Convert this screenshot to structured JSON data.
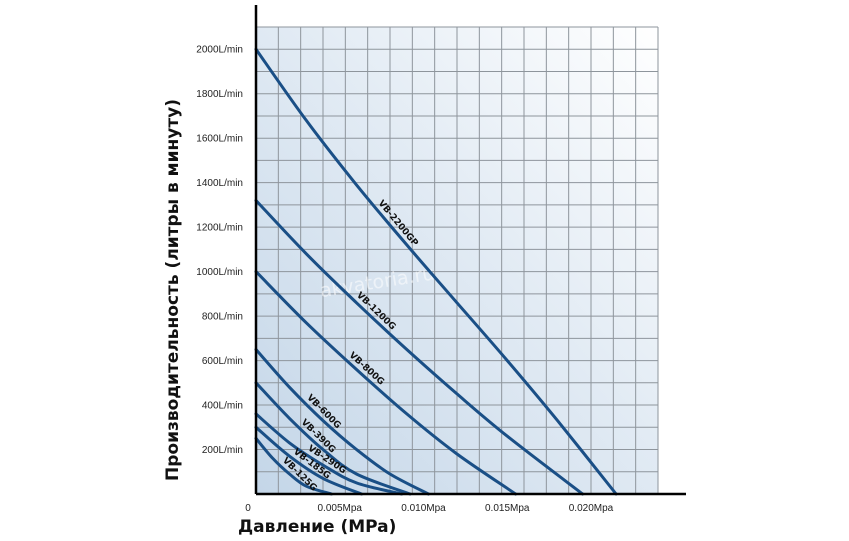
{
  "chart_data": {
    "type": "line",
    "xlabel": "Давление (MPa)",
    "ylabel": "Производительность (литры в минуту)",
    "xlim": [
      0,
      0.024
    ],
    "ylim": [
      0,
      2100
    ],
    "x_ticks": [
      {
        "value": 0,
        "label": "0"
      },
      {
        "value": 0.005,
        "label": "0.005Mpa"
      },
      {
        "value": 0.01,
        "label": "0.010Mpa"
      },
      {
        "value": 0.015,
        "label": "0.015Mpa"
      },
      {
        "value": 0.02,
        "label": "0.020Mpa"
      }
    ],
    "y_ticks": [
      {
        "value": 200,
        "label": "200L/min"
      },
      {
        "value": 400,
        "label": "400L/min"
      },
      {
        "value": 600,
        "label": "600L/min"
      },
      {
        "value": 800,
        "label": "800L/min"
      },
      {
        "value": 1000,
        "label": "1000L/min"
      },
      {
        "value": 1200,
        "label": "1200L/min"
      },
      {
        "value": 1400,
        "label": "1400L/min"
      },
      {
        "value": 1600,
        "label": "1600L/min"
      },
      {
        "value": 1800,
        "label": "1800L/min"
      },
      {
        "value": 2000,
        "label": "2000L/min"
      }
    ],
    "grid": true,
    "watermark": "akvatoria.ru",
    "line_color": "#1a4f86",
    "series": [
      {
        "name": "VB-2200GP",
        "x": [
          0,
          0.003,
          0.006,
          0.009,
          0.012,
          0.015,
          0.018,
          0.0215
        ],
        "y": [
          2000,
          1680,
          1390,
          1120,
          860,
          600,
          330,
          0
        ]
      },
      {
        "name": "VB-1200G",
        "x": [
          0,
          0.003,
          0.006,
          0.009,
          0.012,
          0.015,
          0.0195
        ],
        "y": [
          1320,
          1080,
          860,
          650,
          450,
          260,
          0
        ]
      },
      {
        "name": "VB-800G",
        "x": [
          0,
          0.003,
          0.006,
          0.009,
          0.012,
          0.0155
        ],
        "y": [
          1000,
          770,
          560,
          360,
          180,
          0
        ]
      },
      {
        "name": "VB-600G",
        "x": [
          0,
          0.002,
          0.004,
          0.006,
          0.008,
          0.0103
        ],
        "y": [
          650,
          480,
          330,
          200,
          90,
          0
        ]
      },
      {
        "name": "VB-390G",
        "x": [
          0,
          0.002,
          0.004,
          0.006,
          0.0092
        ],
        "y": [
          500,
          340,
          200,
          90,
          0
        ]
      },
      {
        "name": "VB-290G",
        "x": [
          0,
          0.002,
          0.004,
          0.006,
          0.0087
        ],
        "y": [
          360,
          230,
          130,
          50,
          0
        ]
      },
      {
        "name": "VB-185G",
        "x": [
          0,
          0.002,
          0.004,
          0.0063
        ],
        "y": [
          300,
          170,
          70,
          0
        ]
      },
      {
        "name": "VB-125G",
        "x": [
          0,
          0.001,
          0.002,
          0.003,
          0.0045
        ],
        "y": [
          250,
          160,
          90,
          35,
          0
        ]
      }
    ]
  }
}
